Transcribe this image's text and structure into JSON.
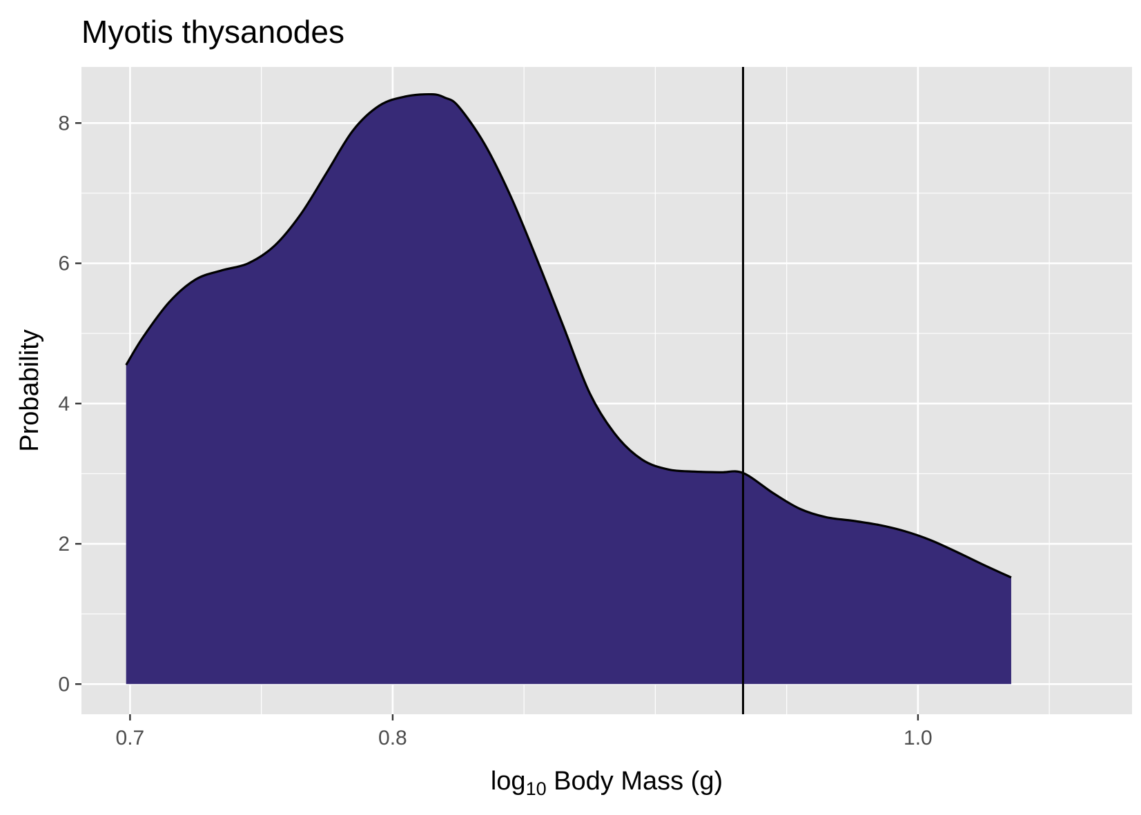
{
  "chart_data": {
    "type": "area",
    "title": "Myotis thysanodes",
    "xlabel": {
      "prefix": "log",
      "subscript": "10",
      "suffix": " Body Mass (g)"
    },
    "ylabel": "Probability",
    "xlim": [
      0.6815,
      1.0815
    ],
    "ylim": [
      -0.43,
      8.8
    ],
    "x_ticks": [
      0.7,
      0.8,
      1.0
    ],
    "x_tick_labels": [
      "0.7",
      "0.8",
      "1.0"
    ],
    "x_minor_ticks": [
      0.75,
      0.85,
      0.9,
      0.95,
      1.05
    ],
    "y_ticks": [
      0,
      2,
      4,
      6,
      8
    ],
    "y_tick_labels": [
      "0",
      "2",
      "4",
      "6",
      "8"
    ],
    "y_minor_ticks": [
      1,
      3,
      5,
      7
    ],
    "grid": true,
    "fill_color": "#372a77",
    "line_color": "#000000",
    "panel_color": "#e5e5e5",
    "vline_x": 0.9334,
    "density": {
      "x": [
        0.6985,
        0.705,
        0.715,
        0.725,
        0.735,
        0.745,
        0.755,
        0.765,
        0.775,
        0.785,
        0.795,
        0.805,
        0.815,
        0.82,
        0.825,
        0.835,
        0.845,
        0.855,
        0.865,
        0.875,
        0.885,
        0.895,
        0.905,
        0.915,
        0.925,
        0.9334,
        0.945,
        0.955,
        0.965,
        0.975,
        0.985,
        0.995,
        1.005,
        1.015,
        1.025,
        1.0355
      ],
      "y": [
        4.55,
        4.95,
        5.45,
        5.77,
        5.9,
        6.0,
        6.25,
        6.7,
        7.3,
        7.9,
        8.25,
        8.38,
        8.41,
        8.36,
        8.24,
        7.7,
        6.95,
        6.05,
        5.1,
        4.15,
        3.55,
        3.2,
        3.06,
        3.03,
        3.02,
        3.01,
        2.72,
        2.5,
        2.38,
        2.33,
        2.27,
        2.18,
        2.05,
        1.88,
        1.7,
        1.52
      ]
    }
  }
}
